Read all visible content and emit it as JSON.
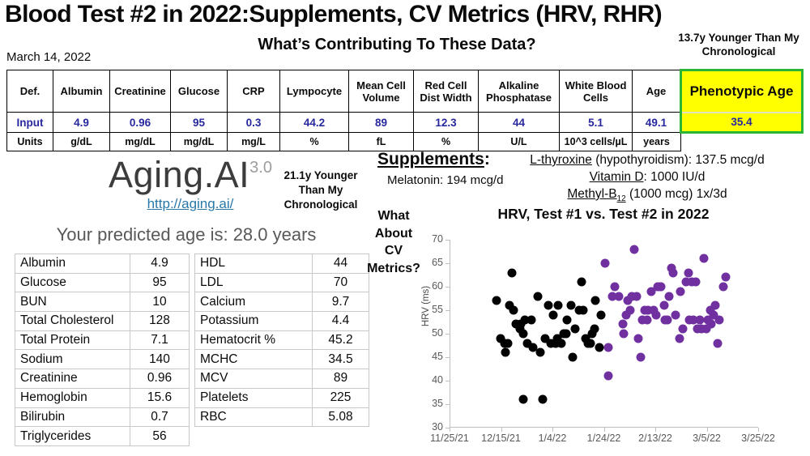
{
  "header": {
    "title": "Blood Test #2 in 2022:Supplements, CV Metrics (HRV, RHR)",
    "date": "March 14, 2022",
    "subtitle": "What’s Contributing To These Data?",
    "younger_note": "13.7y Younger Than My Chronological"
  },
  "biomarker_table": {
    "def_label": "Def.",
    "input_label": "Input",
    "units_label": "Units",
    "columns": [
      {
        "name": "Albumin",
        "input": "4.9",
        "units": "g/dL"
      },
      {
        "name": "Creatinine",
        "input": "0.96",
        "units": "mg/dL"
      },
      {
        "name": "Glucose",
        "input": "95",
        "units": "mg/dL"
      },
      {
        "name": "CRP",
        "input": "0.3",
        "units": "mg/L"
      },
      {
        "name": "Lympocyte",
        "input": "44.2",
        "units": "%"
      },
      {
        "name": "Mean Cell Volume",
        "input": "89",
        "units": "fL"
      },
      {
        "name": "Red Cell Dist Width",
        "input": "12.3",
        "units": "%"
      },
      {
        "name": "Alkaline Phosphatase",
        "input": "44",
        "units": "U/L"
      },
      {
        "name": "White Blood Cells",
        "input": "5.1",
        "units": "10^3 cells/µL"
      },
      {
        "name": "Age",
        "input": "49.1",
        "units": "years"
      }
    ],
    "phenotypic": {
      "label": "Phenotypic Age",
      "value": "35.4"
    }
  },
  "aging_ai": {
    "logo": "Aging.AI",
    "version": "3.0",
    "url": "http://aging.ai/",
    "younger_note": "21.1y Younger Than My Chronological",
    "predicted": "Your predicted age is: 28.0 years",
    "table_left": [
      [
        "Albumin",
        "4.9"
      ],
      [
        "Glucose",
        "95"
      ],
      [
        "BUN",
        "10"
      ],
      [
        "Total Cholesterol",
        "128"
      ],
      [
        "Total Protein",
        "7.1"
      ],
      [
        "Sodium",
        "140"
      ],
      [
        "Creatinine",
        "0.96"
      ],
      [
        "Hemoglobin",
        "15.6"
      ],
      [
        "Bilirubin",
        "0.7"
      ],
      [
        "Triglycerides",
        "56"
      ]
    ],
    "table_right": [
      [
        "HDL",
        "44"
      ],
      [
        "LDL",
        "70"
      ],
      [
        "Calcium",
        "9.7"
      ],
      [
        "Potassium",
        "4.4"
      ],
      [
        "Hematocrit %",
        "45.2"
      ],
      [
        "MCHC",
        "34.5"
      ],
      [
        "MCV",
        "89"
      ],
      [
        "Platelets",
        "225"
      ],
      [
        "RBC",
        "5.08"
      ]
    ]
  },
  "supplements": {
    "heading": "Supplements",
    "heading_colon": ":",
    "melatonin": "Melatonin: 194 mcg/d",
    "right_lines": [
      {
        "parts": [
          {
            "t": "L-thyroxine",
            "u": true
          },
          {
            "t": " (hypothyroidism): 137.5 mcg/d"
          }
        ]
      },
      {
        "parts": [
          {
            "t": "Vitamin D",
            "u": true
          },
          {
            "t": ": 1000 IU/d"
          }
        ]
      },
      {
        "parts": [
          {
            "t": "Methyl-B",
            "u": true
          },
          {
            "t": "12",
            "u": true,
            "sub": true
          },
          {
            "t": " (1000 mcg) 1x/3d"
          }
        ]
      }
    ]
  },
  "cv_question": [
    "What",
    "About",
    "CV",
    "Metrics?"
  ],
  "chart_data": {
    "type": "scatter",
    "title": "HRV, Test #1 vs. Test #2 in 2022",
    "ylabel": "HRV (ms)",
    "ylim": [
      30,
      70
    ],
    "yticks": [
      30,
      35,
      40,
      45,
      50,
      55,
      60,
      65,
      70
    ],
    "xtick_labels": [
      "11/25/21",
      "12/15/21",
      "1/4/22",
      "1/24/22",
      "2/13/22",
      "3/5/22",
      "3/25/22"
    ],
    "x_days_range": [
      0,
      120
    ],
    "x_units": "days from 11/25/21",
    "grid": false,
    "legend": "none",
    "series": [
      {
        "name": "Test #1",
        "color": "#000000",
        "points": [
          [
            18,
            57
          ],
          [
            19.5,
            49
          ],
          [
            21,
            48
          ],
          [
            21.5,
            46
          ],
          [
            22.5,
            48
          ],
          [
            23,
            56
          ],
          [
            24,
            63
          ],
          [
            24.5,
            55
          ],
          [
            25.5,
            52
          ],
          [
            27,
            51
          ],
          [
            27.5,
            52
          ],
          [
            28.5,
            50
          ],
          [
            29,
            53
          ],
          [
            28.5,
            36
          ],
          [
            30,
            48
          ],
          [
            31.5,
            53
          ],
          [
            32,
            47
          ],
          [
            34,
            58
          ],
          [
            35,
            46
          ],
          [
            36,
            36
          ],
          [
            37,
            49
          ],
          [
            38,
            56
          ],
          [
            39,
            48
          ],
          [
            40,
            54
          ],
          [
            41,
            48
          ],
          [
            41.5,
            49
          ],
          [
            42,
            56
          ],
          [
            43,
            48
          ],
          [
            44,
            50
          ],
          [
            45,
            50
          ],
          [
            45.5,
            53
          ],
          [
            47,
            56
          ],
          [
            47.5,
            45
          ],
          [
            48.5,
            51
          ],
          [
            50,
            55
          ],
          [
            51,
            61
          ],
          [
            51.5,
            55
          ],
          [
            52.5,
            49
          ],
          [
            53.5,
            48
          ],
          [
            54.5,
            48
          ],
          [
            55,
            50
          ],
          [
            56,
            51
          ],
          [
            56.5,
            57
          ],
          [
            58,
            47
          ],
          [
            58.5,
            54
          ]
        ]
      },
      {
        "name": "Test #2",
        "color": "#7030A0",
        "points": [
          [
            60,
            65
          ],
          [
            61.5,
            47
          ],
          [
            61.5,
            41
          ],
          [
            63,
            58
          ],
          [
            64,
            60
          ],
          [
            65.5,
            58
          ],
          [
            67,
            52
          ],
          [
            67.5,
            50
          ],
          [
            68.5,
            54
          ],
          [
            69,
            57
          ],
          [
            70,
            55
          ],
          [
            70.5,
            58
          ],
          [
            71.5,
            68
          ],
          [
            72.5,
            58
          ],
          [
            73,
            49
          ],
          [
            74,
            45
          ],
          [
            74.5,
            53
          ],
          [
            75.5,
            55
          ],
          [
            76.5,
            53
          ],
          [
            77,
            55
          ],
          [
            78,
            59
          ],
          [
            79,
            55
          ],
          [
            80,
            54
          ],
          [
            80.5,
            60
          ],
          [
            81.5,
            60
          ],
          [
            82,
            60
          ],
          [
            83,
            56
          ],
          [
            83.5,
            53
          ],
          [
            84.5,
            53
          ],
          [
            85,
            58
          ],
          [
            86,
            64
          ],
          [
            86.5,
            63
          ],
          [
            87.5,
            54
          ],
          [
            89,
            49
          ],
          [
            89.5,
            59
          ],
          [
            90.5,
            51
          ],
          [
            91.5,
            61
          ],
          [
            92.5,
            63
          ],
          [
            93,
            53
          ],
          [
            94,
            61
          ],
          [
            94.5,
            53
          ],
          [
            95.5,
            61
          ],
          [
            96,
            51
          ],
          [
            97,
            53
          ],
          [
            97.5,
            51
          ],
          [
            98.5,
            66
          ],
          [
            99.5,
            51
          ],
          [
            100,
            53
          ],
          [
            101,
            55
          ],
          [
            101.5,
            52
          ],
          [
            102.5,
            54
          ],
          [
            103,
            56
          ],
          [
            104,
            48
          ],
          [
            104.5,
            53
          ],
          [
            106,
            60
          ],
          [
            107,
            62
          ]
        ]
      }
    ]
  }
}
